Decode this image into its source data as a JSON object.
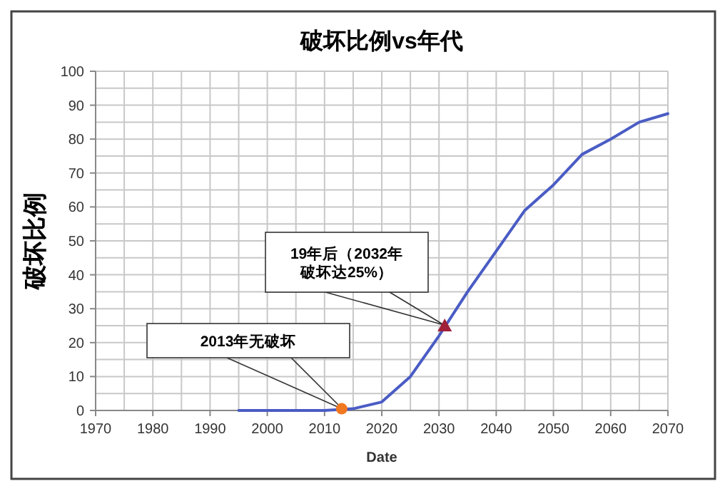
{
  "chart_data": {
    "type": "line",
    "title": "破坏比例vs年代",
    "xlabel": "Date",
    "ylabel": "破坏比例",
    "xlim": [
      1970,
      2070
    ],
    "xticks": [
      1970,
      1980,
      1990,
      2000,
      2010,
      2020,
      2030,
      2040,
      2050,
      2060,
      2070
    ],
    "ylim": [
      0,
      100
    ],
    "yticks": [
      0,
      10,
      20,
      30,
      40,
      50,
      60,
      70,
      80,
      90,
      100
    ],
    "grid": true,
    "series": [
      {
        "color": "#4a5cc4",
        "x": [
          1995,
          2000,
          2005,
          2010,
          2015,
          2020,
          2025,
          2030,
          2035,
          2040,
          2045,
          2050,
          2055,
          2060,
          2065,
          2070
        ],
        "values": [
          0,
          0,
          0,
          0,
          0.5,
          2.5,
          10,
          22,
          35,
          47,
          59,
          66.5,
          75.5,
          80,
          85,
          87.5
        ]
      },
      {
        "type": "scatter",
        "color": "#f07820",
        "marker": "circle",
        "x": [
          2013
        ],
        "values": [
          0.5
        ]
      },
      {
        "type": "scatter",
        "color": "#a0203a",
        "marker": "triangle",
        "x": [
          2031
        ],
        "values": [
          25
        ]
      }
    ],
    "annotations": [
      "2013年无破坏",
      "19年后（2032年破坏达25%）"
    ]
  }
}
